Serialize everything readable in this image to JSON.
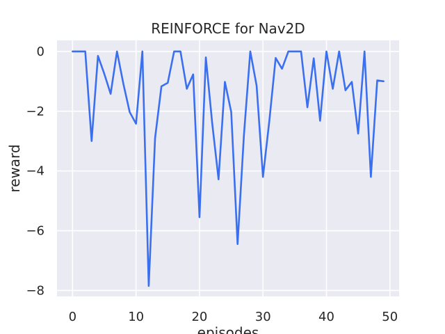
{
  "chart_data": {
    "type": "line",
    "title": "REINFORCE for Nav2D",
    "xlabel": "episodes",
    "ylabel": "reward",
    "xlim": [
      -2.45,
      51.45
    ],
    "ylim": [
      -8.2,
      0.37
    ],
    "xticks": [
      0,
      10,
      20,
      30,
      40,
      50
    ],
    "yticks": [
      0,
      -2,
      -4,
      -6,
      -8
    ],
    "xtick_labels": [
      "0",
      "10",
      "20",
      "30",
      "40",
      "50"
    ],
    "ytick_labels": [
      "0",
      "−2",
      "−4",
      "−6",
      "−8"
    ],
    "grid": true,
    "series": [
      {
        "color": "#3a6ff0",
        "x": [
          0,
          1,
          2,
          3,
          4,
          5,
          6,
          7,
          8,
          9,
          10,
          11,
          12,
          13,
          14,
          15,
          16,
          17,
          18,
          19,
          20,
          21,
          22,
          23,
          24,
          25,
          26,
          27,
          28,
          29,
          30,
          31,
          32,
          33,
          34,
          35,
          36,
          37,
          38,
          39,
          40,
          41,
          42,
          43,
          44,
          45,
          46,
          47,
          48,
          49
        ],
        "y": [
          0,
          0,
          0,
          -3.0,
          -0.15,
          -0.75,
          -1.42,
          0,
          -1.08,
          -2.03,
          -2.42,
          0,
          -7.85,
          -2.9,
          -1.17,
          -1.05,
          0,
          0,
          -1.25,
          -0.77,
          -5.55,
          -0.2,
          -2.4,
          -4.28,
          -1.02,
          -2.03,
          -6.45,
          -2.8,
          0,
          -1.15,
          -4.2,
          -2.33,
          -0.22,
          -0.58,
          0,
          0,
          0,
          -1.87,
          -0.23,
          -2.32,
          0,
          -1.25,
          0,
          -1.3,
          -1.02,
          -2.75,
          0,
          -4.2,
          -0.97,
          -1.0
        ]
      }
    ]
  }
}
